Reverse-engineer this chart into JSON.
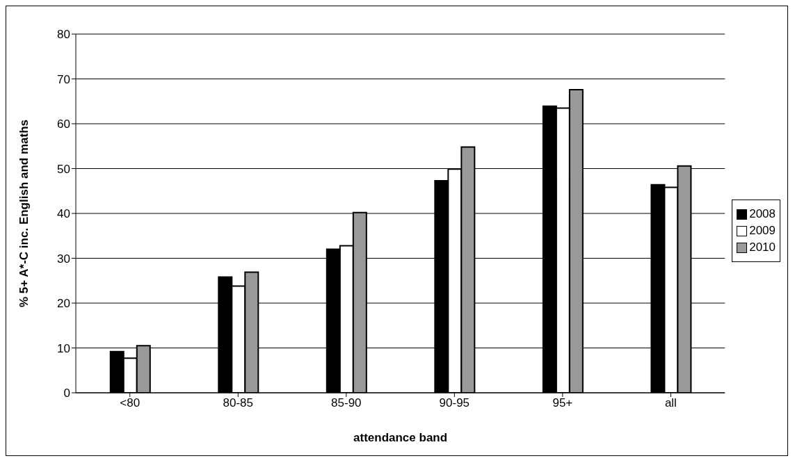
{
  "chart_data": {
    "type": "bar",
    "xlabel": "attendance band",
    "ylabel": "% 5+ A*-C inc. English and maths",
    "categories": [
      "<80",
      "80-85",
      "85-90",
      "90-95",
      "95+",
      "all"
    ],
    "series": [
      {
        "name": "2008",
        "color": "#000000",
        "values": [
          9.2,
          25.8,
          32.0,
          47.3,
          63.9,
          46.4
        ]
      },
      {
        "name": "2009",
        "color": "#ffffff",
        "values": [
          7.7,
          23.8,
          32.8,
          49.9,
          63.5,
          45.8
        ]
      },
      {
        "name": "2010",
        "color": "#999999",
        "values": [
          10.5,
          26.9,
          40.2,
          54.8,
          67.6,
          50.6
        ]
      }
    ],
    "ylim": [
      0,
      80
    ],
    "yticks": [
      0,
      10,
      20,
      30,
      40,
      50,
      60,
      70,
      80
    ],
    "grid": "y",
    "legend": "right"
  }
}
